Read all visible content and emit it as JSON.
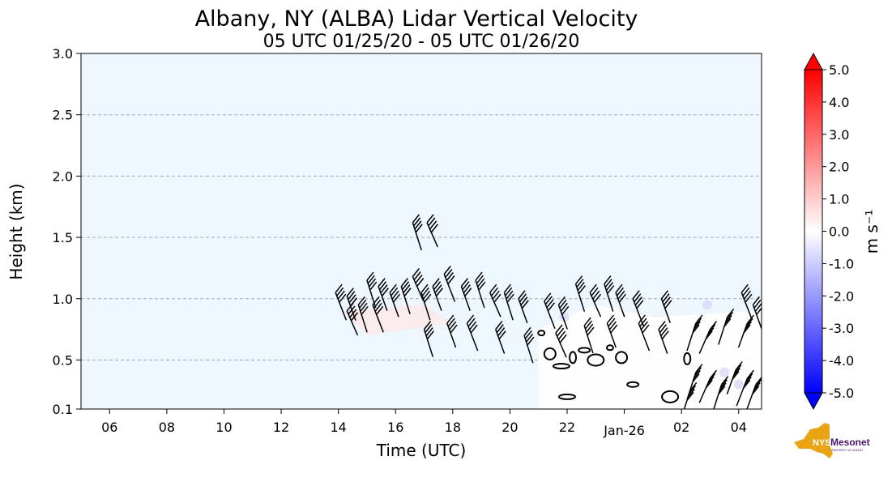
{
  "chart_data": {
    "type": "heatmap",
    "title": "Albany, NY (ALBA) Lidar Vertical Velocity",
    "subtitle": "05 UTC 01/25/20 - 05 UTC 01/26/20",
    "xlabel": "Time (UTC)",
    "ylabel": "Height (km)",
    "x_range_hours": [
      5,
      28.8
    ],
    "ylim": [
      0.1,
      3.0
    ],
    "x_ticks": [
      {
        "hour": 6,
        "label": "06"
      },
      {
        "hour": 8,
        "label": "08"
      },
      {
        "hour": 10,
        "label": "10"
      },
      {
        "hour": 12,
        "label": "12"
      },
      {
        "hour": 14,
        "label": "14"
      },
      {
        "hour": 16,
        "label": "16"
      },
      {
        "hour": 18,
        "label": "18"
      },
      {
        "hour": 20,
        "label": "20"
      },
      {
        "hour": 22,
        "label": "22"
      },
      {
        "hour": 24,
        "label": "Jan-26"
      },
      {
        "hour": 26,
        "label": "02"
      },
      {
        "hour": 28,
        "label": "04"
      }
    ],
    "y_ticks": [
      {
        "value": 0.1,
        "label": "0.1"
      },
      {
        "value": 0.5,
        "label": "0.5"
      },
      {
        "value": 1.0,
        "label": "1.0"
      },
      {
        "value": 1.5,
        "label": "1.5"
      },
      {
        "value": 2.0,
        "label": "2.0"
      },
      {
        "value": 2.5,
        "label": "2.5"
      },
      {
        "value": 3.0,
        "label": "3.0"
      }
    ],
    "grid": "horizontal dashed",
    "background_color": "#eef6fe",
    "colorbar": {
      "label": "m s⁻¹",
      "range": [
        -5.0,
        5.0
      ],
      "ticks": [
        "5.0",
        "4.0",
        "3.0",
        "2.0",
        "1.0",
        "0.0",
        "-1.0",
        "-2.0",
        "-3.0",
        "-4.0",
        "-5.0"
      ],
      "colormap": "bwr",
      "extend": "both"
    },
    "wind_barbs_approx": [
      {
        "hour": 13.9,
        "height": 1.05
      },
      {
        "hour": 14.3,
        "height": 1.02
      },
      {
        "hour": 14.7,
        "height": 0.95
      },
      {
        "hour": 14.3,
        "height": 0.9
      },
      {
        "hour": 15.0,
        "height": 1.15
      },
      {
        "hour": 15.4,
        "height": 1.1
      },
      {
        "hour": 15.2,
        "height": 0.95
      },
      {
        "hour": 15.8,
        "height": 1.05
      },
      {
        "hour": 16.2,
        "height": 1.1
      },
      {
        "hour": 16.6,
        "height": 1.18
      },
      {
        "hour": 16.9,
        "height": 1.05
      },
      {
        "hour": 17.3,
        "height": 1.1
      },
      {
        "hour": 17.7,
        "height": 1.2
      },
      {
        "hour": 18.3,
        "height": 1.1
      },
      {
        "hour": 18.8,
        "height": 1.15
      },
      {
        "hour": 19.3,
        "height": 1.05
      },
      {
        "hour": 19.8,
        "height": 1.05
      },
      {
        "hour": 20.3,
        "height": 1.0
      },
      {
        "hour": 21.2,
        "height": 0.98
      },
      {
        "hour": 21.7,
        "height": 0.95
      },
      {
        "hour": 22.3,
        "height": 1.12
      },
      {
        "hour": 22.8,
        "height": 1.05
      },
      {
        "hour": 23.3,
        "height": 1.12
      },
      {
        "hour": 23.7,
        "height": 1.05
      },
      {
        "hour": 24.3,
        "height": 1.0
      },
      {
        "hour": 25.3,
        "height": 1.0
      },
      {
        "hour": 16.6,
        "height": 1.62
      },
      {
        "hour": 17.1,
        "height": 1.62
      },
      {
        "hour": 17.0,
        "height": 0.75
      },
      {
        "hour": 17.8,
        "height": 0.8
      },
      {
        "hour": 18.5,
        "height": 0.8
      },
      {
        "hour": 19.5,
        "height": 0.75
      },
      {
        "hour": 20.5,
        "height": 0.7
      },
      {
        "hour": 21.6,
        "height": 0.72
      },
      {
        "hour": 22.6,
        "height": 0.78
      },
      {
        "hour": 23.4,
        "height": 0.8
      },
      {
        "hour": 24.5,
        "height": 0.8
      },
      {
        "hour": 25.2,
        "height": 0.75
      },
      {
        "hour": 26.5,
        "height": 0.8
      },
      {
        "hour": 27.0,
        "height": 0.75
      },
      {
        "hour": 27.6,
        "height": 0.85
      },
      {
        "hour": 28.3,
        "height": 0.8
      },
      {
        "hour": 28.1,
        "height": 1.05
      },
      {
        "hour": 28.5,
        "height": 0.95
      },
      {
        "hour": 26.5,
        "height": 0.4
      },
      {
        "hour": 27.0,
        "height": 0.35
      },
      {
        "hour": 27.4,
        "height": 0.3
      },
      {
        "hour": 27.9,
        "height": 0.42
      },
      {
        "hour": 28.3,
        "height": 0.35
      },
      {
        "hour": 28.6,
        "height": 0.3
      },
      {
        "hour": 26.3,
        "height": 0.25
      }
    ],
    "contour_blobs_approx": [
      {
        "hour": 21.1,
        "height": 0.72
      },
      {
        "hour": 21.4,
        "height": 0.55
      },
      {
        "hour": 21.8,
        "height": 0.45
      },
      {
        "hour": 22.2,
        "height": 0.52
      },
      {
        "hour": 22.6,
        "height": 0.58
      },
      {
        "hour": 23.0,
        "height": 0.5
      },
      {
        "hour": 23.5,
        "height": 0.6
      },
      {
        "hour": 23.9,
        "height": 0.52
      },
      {
        "hour": 22.0,
        "height": 0.2
      },
      {
        "hour": 26.2,
        "height": 0.51
      },
      {
        "hour": 24.3,
        "height": 0.3
      },
      {
        "hour": 25.6,
        "height": 0.2
      }
    ]
  },
  "logo": {
    "text": "NYS",
    "name": "Mesonet",
    "tagline": "UNIVERSITY AT ALBANY",
    "colors": {
      "state": "#e8a412",
      "brand": "#46166b"
    }
  }
}
